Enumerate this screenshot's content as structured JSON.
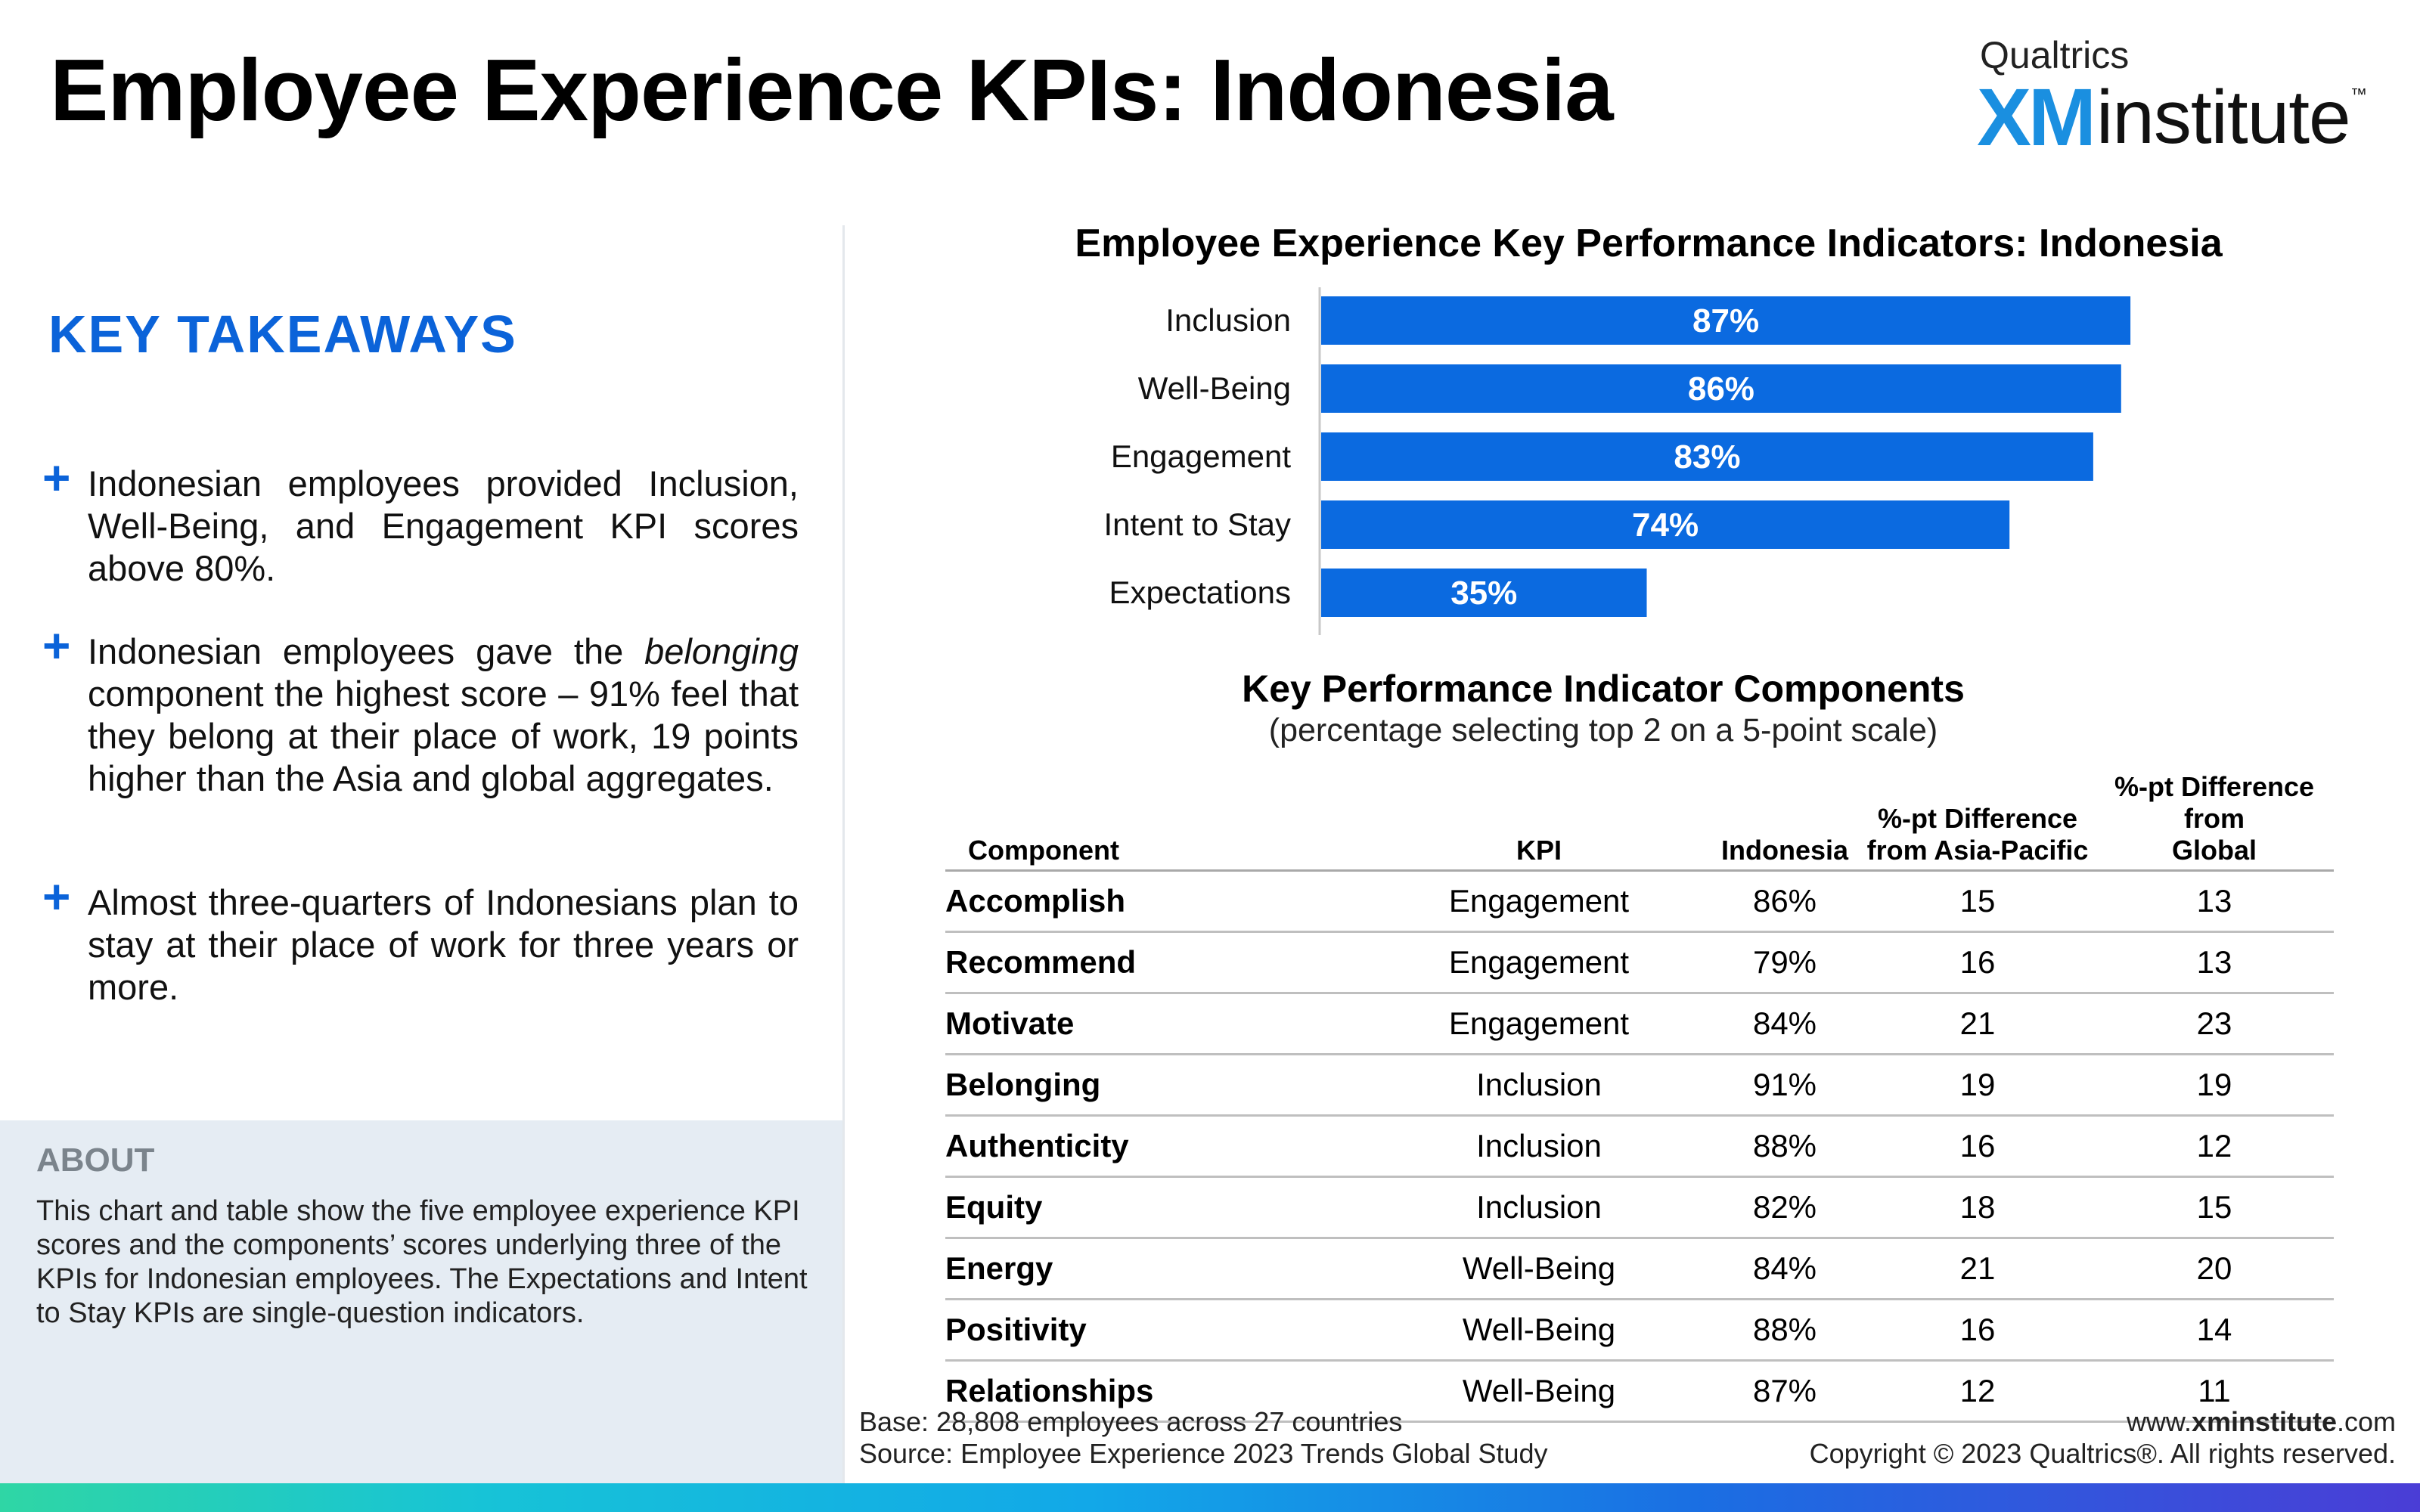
{
  "title": "Employee Experience KPIs: Indonesia",
  "logo": {
    "brand": "Qualtrics",
    "xm": "XM",
    "institute": "institute",
    "tm": "™"
  },
  "takeaways": {
    "title": "KEY TAKEAWAYS",
    "items": [
      {
        "before": "Indonesian employees provided Inclusion, Well-Being, and Engagement KPI scores above 80%.",
        "italic": "",
        "after": ""
      },
      {
        "before": "Indonesian employees gave the ",
        "italic": "belonging",
        "after": " component the highest score – 91% feel that they belong at their place of work, 19 points higher than the Asia and global aggregates."
      },
      {
        "before": "Almost three-quarters of Indonesians plan to stay at their place of work for three years or more.",
        "italic": "",
        "after": ""
      }
    ]
  },
  "about": {
    "title": "ABOUT",
    "text": "This chart and table show the five employee experience KPI scores and the components’ scores underlying three of the KPIs for Indonesian employees. The Expectations and Intent to Stay KPIs are single-question indicators."
  },
  "chart_data": {
    "type": "bar",
    "orientation": "horizontal",
    "title": "Employee Experience Key Performance Indicators: Indonesia",
    "categories": [
      "Inclusion",
      "Well-Being",
      "Engagement",
      "Intent to Stay",
      "Expectations"
    ],
    "values": [
      87,
      86,
      83,
      74,
      35
    ],
    "value_labels": [
      "87%",
      "86%",
      "83%",
      "74%",
      "35%"
    ],
    "xlim": [
      0,
      100
    ],
    "bar_color": "#0b6ae0",
    "label_color": "#ffffff",
    "grid": false
  },
  "table": {
    "title": "Key Performance Indicator Components",
    "subtitle": "(percentage selecting top 2 on a 5-point scale)",
    "headers": {
      "component": "Component",
      "kpi": "KPI",
      "indonesia": "Indonesia",
      "apac_line1": "%-pt Difference",
      "apac_line2": "from Asia-Pacific",
      "global_line1": "%-pt Difference from",
      "global_line2": "Global"
    },
    "rows": [
      {
        "component": "Accomplish",
        "kpi": "Engagement",
        "indonesia": "86%",
        "apac": "15",
        "global": "13"
      },
      {
        "component": "Recommend",
        "kpi": "Engagement",
        "indonesia": "79%",
        "apac": "16",
        "global": "13"
      },
      {
        "component": "Motivate",
        "kpi": "Engagement",
        "indonesia": "84%",
        "apac": "21",
        "global": "23"
      },
      {
        "component": "Belonging",
        "kpi": "Inclusion",
        "indonesia": "91%",
        "apac": "19",
        "global": "19"
      },
      {
        "component": "Authenticity",
        "kpi": "Inclusion",
        "indonesia": "88%",
        "apac": "16",
        "global": "12"
      },
      {
        "component": "Equity",
        "kpi": "Inclusion",
        "indonesia": "82%",
        "apac": "18",
        "global": "15"
      },
      {
        "component": "Energy",
        "kpi": "Well-Being",
        "indonesia": "84%",
        "apac": "21",
        "global": "20"
      },
      {
        "component": "Positivity",
        "kpi": "Well-Being",
        "indonesia": "88%",
        "apac": "16",
        "global": "14"
      },
      {
        "component": "Relationships",
        "kpi": "Well-Being",
        "indonesia": "87%",
        "apac": "12",
        "global": "11"
      }
    ]
  },
  "footer": {
    "base": "Base: 28,808 employees across 27 countries",
    "source": "Source: Employee Experience 2023 Trends Global Study",
    "url_prefix": "www.",
    "url_bold": "xminstitute",
    "url_suffix": ".com",
    "copyright": "Copyright © 2023 Qualtrics®. All rights reserved."
  }
}
